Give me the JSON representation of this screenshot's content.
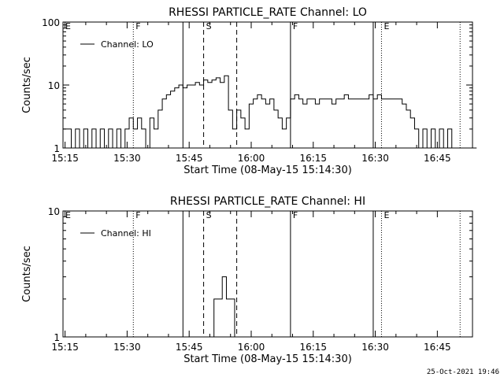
{
  "chart_data": [
    {
      "type": "line",
      "title": "RHESSI PARTICLE_RATE Channel: LO",
      "xlabel": "Start Time (08-May-15 15:14:30)",
      "ylabel": "Counts/sec",
      "yscale": "log",
      "ylim": [
        1,
        100
      ],
      "xlim_minutes": [
        0,
        99
      ],
      "x_ticks": [
        "15:15",
        "15:30",
        "15:45",
        "16:00",
        "16:15",
        "16:30",
        "16:45"
      ],
      "y_ticks": [
        "1",
        "10",
        "100"
      ],
      "legend": {
        "label": "Channel: LO",
        "placement": "top-left"
      },
      "series": [
        {
          "name": "Channel: LO",
          "step": true,
          "x": [
            0,
            2,
            3,
            4,
            5,
            6,
            7,
            8,
            9,
            10,
            11,
            12,
            13,
            14,
            15,
            16,
            17,
            18,
            19,
            20,
            21,
            22,
            23,
            24,
            25,
            26,
            27,
            28,
            29,
            30,
            31,
            32,
            33,
            34,
            35,
            36,
            37,
            38,
            39,
            40,
            41,
            42,
            43,
            44,
            45,
            46,
            47,
            48,
            49,
            50,
            51,
            52,
            53,
            54,
            55,
            56,
            57,
            58,
            59,
            60,
            61,
            62,
            63,
            64,
            65,
            66,
            67,
            68,
            69,
            70,
            71,
            72,
            73,
            74,
            75,
            76,
            77,
            78,
            79,
            80,
            81,
            82,
            83,
            84,
            85,
            86,
            87,
            88,
            89,
            90,
            91,
            92,
            93,
            94,
            95,
            96,
            97,
            98,
            99
          ],
          "values": [
            2,
            1,
            2,
            1,
            2,
            1,
            2,
            1,
            2,
            1,
            2,
            1,
            2,
            1,
            2,
            3,
            2,
            3,
            2,
            1,
            3,
            2,
            4,
            6,
            7,
            8,
            9,
            10,
            9,
            10,
            10,
            11,
            10,
            12,
            11,
            12,
            13,
            11,
            14,
            4,
            2,
            4,
            3,
            2,
            5,
            6,
            7,
            6,
            5,
            6,
            4,
            3,
            2,
            3,
            6,
            7,
            6,
            5,
            6,
            6,
            5,
            6,
            6,
            6,
            5,
            6,
            6,
            7,
            6,
            6,
            6,
            6,
            6,
            7,
            6,
            7,
            6,
            6,
            6,
            6,
            6,
            5,
            4,
            3,
            2,
            1,
            2,
            1,
            2,
            1,
            2,
            1,
            2,
            1,
            1,
            1,
            1,
            1,
            1
          ],
          "color": "#000000"
        }
      ],
      "markers": [
        {
          "label": "E",
          "x": 0,
          "style": "solid"
        },
        {
          "label": "F",
          "x": 17,
          "style": "dotted"
        },
        {
          "label": "",
          "x": 29,
          "style": "solid"
        },
        {
          "label": "S",
          "x": 34,
          "style": "dashed"
        },
        {
          "label": "",
          "x": 42,
          "style": "dashed"
        },
        {
          "label": "F",
          "x": 55,
          "style": "solid"
        },
        {
          "label": "",
          "x": 75,
          "style": "solid"
        },
        {
          "label": "E",
          "x": 77,
          "style": "dotted"
        },
        {
          "label": "",
          "x": 96,
          "style": "dotted"
        }
      ]
    },
    {
      "type": "line",
      "title": "RHESSI PARTICLE_RATE Channel: HI",
      "xlabel": "Start Time (08-May-15 15:14:30)",
      "ylabel": "Counts/sec",
      "yscale": "log",
      "ylim": [
        1,
        10
      ],
      "xlim_minutes": [
        0,
        99
      ],
      "x_ticks": [
        "15:15",
        "15:30",
        "15:45",
        "16:00",
        "16:15",
        "16:30",
        "16:45"
      ],
      "y_ticks": [
        "1",
        "10"
      ],
      "legend": {
        "label": "Channel: HI",
        "placement": "top-left"
      },
      "series": [
        {
          "name": "Channel: HI",
          "step": true,
          "x": [
            36.5,
            37.5,
            38.5,
            39.5,
            40.5
          ],
          "values": [
            2,
            2,
            3,
            2,
            2
          ],
          "color": "#000000"
        }
      ],
      "markers": [
        {
          "label": "E",
          "x": 0,
          "style": "solid"
        },
        {
          "label": "F",
          "x": 17,
          "style": "dotted"
        },
        {
          "label": "",
          "x": 29,
          "style": "solid"
        },
        {
          "label": "S",
          "x": 34,
          "style": "dashed"
        },
        {
          "label": "",
          "x": 42,
          "style": "dashed"
        },
        {
          "label": "F",
          "x": 55,
          "style": "solid"
        },
        {
          "label": "",
          "x": 75,
          "style": "solid"
        },
        {
          "label": "E",
          "x": 77,
          "style": "dotted"
        },
        {
          "label": "",
          "x": 96,
          "style": "dotted"
        }
      ]
    }
  ],
  "footer": {
    "timestamp": "25-Oct-2021 19:46"
  }
}
